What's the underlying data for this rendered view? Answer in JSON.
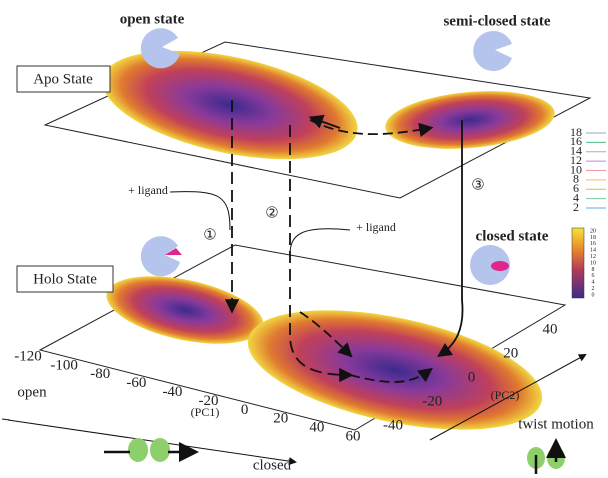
{
  "labels": {
    "open_state": "open state",
    "semi_closed_state": "semi-closed state",
    "apo_state": "Apo State",
    "holo_state": "Holo State",
    "closed_state": "closed state",
    "ligand_1": "+ ligand",
    "ligand_2": "+ ligand",
    "step_1": "①",
    "step_2": "②",
    "step_3": "③",
    "open": "open",
    "closed": "closed",
    "pc1": "(PC1)",
    "pc2": "(PC2)",
    "twist_motion": "twist motion"
  },
  "pc1_ticks": [
    "-120",
    "-100",
    "-80",
    "-60",
    "-40",
    "-20",
    "0",
    "20",
    "40",
    "60"
  ],
  "pc2_ticks": [
    "40",
    "20",
    "0",
    "-20",
    "-40"
  ],
  "contour_legend": [
    "18",
    "16",
    "14",
    "12",
    "10",
    "8",
    "6",
    "4",
    "2"
  ],
  "colorbar_ticks": [
    "20",
    "18",
    "16",
    "14",
    "12",
    "10",
    "8",
    "6",
    "4",
    "2",
    "0"
  ]
}
